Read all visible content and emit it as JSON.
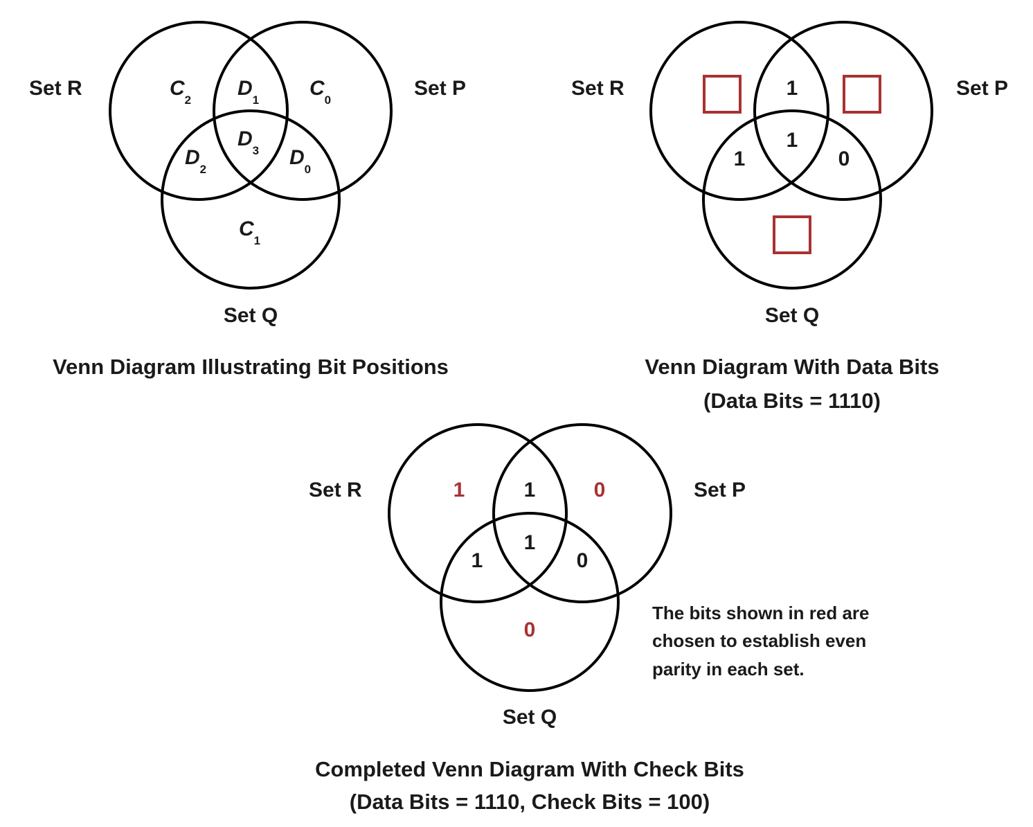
{
  "colors": {
    "stroke": "#000000",
    "text": "#1a1a1a",
    "check_bit_red": "#a83232"
  },
  "diagram1": {
    "set_r_label": "Set R",
    "set_p_label": "Set P",
    "set_q_label": "Set Q",
    "regions": {
      "r_only": {
        "letter": "C",
        "sub": "2"
      },
      "rp": {
        "letter": "D",
        "sub": "1"
      },
      "p_only": {
        "letter": "C",
        "sub": "0"
      },
      "rpq": {
        "letter": "D",
        "sub": "3"
      },
      "rq": {
        "letter": "D",
        "sub": "2"
      },
      "pq": {
        "letter": "D",
        "sub": "0"
      },
      "q_only": {
        "letter": "C",
        "sub": "1"
      }
    },
    "caption_line1": "Venn Diagram Illustrating Bit Positions"
  },
  "diagram2": {
    "set_r_label": "Set R",
    "set_p_label": "Set P",
    "set_q_label": "Set Q",
    "bits": {
      "rp": "1",
      "rpq": "1",
      "rq": "1",
      "pq": "0"
    },
    "placeholders": [
      "r_only",
      "p_only",
      "q_only"
    ],
    "caption_line1": "Venn Diagram With Data Bits",
    "caption_line2": "(Data Bits = 1110)"
  },
  "diagram3": {
    "set_r_label": "Set R",
    "set_p_label": "Set P",
    "set_q_label": "Set Q",
    "bits": {
      "r_only": "1",
      "rp": "1",
      "p_only": "0",
      "rpq": "1",
      "rq": "1",
      "pq": "0",
      "q_only": "0"
    },
    "red_bits": [
      "r_only",
      "p_only",
      "q_only"
    ],
    "note_line1": "The bits shown in red are",
    "note_line2": "chosen to establish even",
    "note_line3": "parity in each set.",
    "caption_line1": "Completed Venn Diagram With Check Bits",
    "caption_line2": "(Data Bits = 1110, Check Bits = 100)"
  }
}
